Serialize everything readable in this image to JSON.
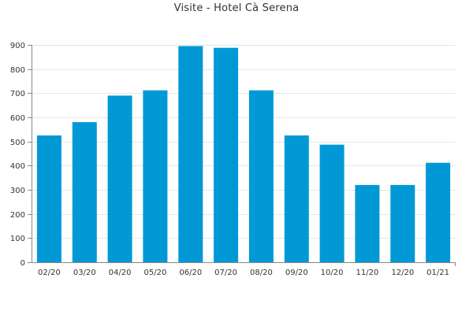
{
  "chart_data": {
    "type": "bar",
    "title": "Visite - Hotel Cà Serena",
    "xlabel": "",
    "ylabel": "",
    "categories": [
      "02/20",
      "03/20",
      "04/20",
      "05/20",
      "06/20",
      "07/20",
      "08/20",
      "09/20",
      "10/20",
      "11/20",
      "12/20",
      "01/21"
    ],
    "values": [
      525,
      580,
      690,
      712,
      895,
      888,
      712,
      525,
      487,
      320,
      320,
      412
    ],
    "ylim": [
      0,
      900
    ],
    "yticks": [
      0,
      100,
      200,
      300,
      400,
      500,
      600,
      700,
      800,
      900
    ],
    "grid": true,
    "bar_color": "#0099d6",
    "grid_color": "#e6e6e6"
  }
}
